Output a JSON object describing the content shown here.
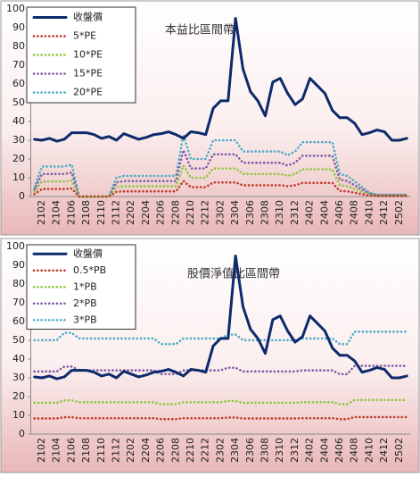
{
  "chart_data": [
    {
      "type": "line",
      "annotation": "本益比區間帶",
      "legend": "upper left",
      "ylim": [
        0,
        100
      ],
      "yticks": [
        0,
        10,
        20,
        30,
        40,
        50,
        60,
        70,
        80,
        90,
        100
      ],
      "categories": [
        null,
        "2102",
        null,
        "2104",
        null,
        "2106",
        null,
        "2108",
        null,
        "2110",
        null,
        "2112",
        null,
        "2202",
        null,
        "2204",
        null,
        "2206",
        null,
        "2208",
        null,
        "2210",
        null,
        "2212",
        null,
        "2302",
        null,
        "2304",
        null,
        "2306",
        null,
        "2308",
        null,
        "2310",
        null,
        "2312",
        null,
        "2402",
        null,
        "2404",
        null,
        "2406",
        null,
        "2408",
        null,
        "2410",
        null,
        "2412",
        null,
        "2502",
        null
      ],
      "series": [
        {
          "name": "收盤價",
          "color": "#0d2a6b",
          "line_style": "solid",
          "values": [
            30.5,
            30,
            31,
            29.5,
            30.5,
            34,
            34,
            34,
            33,
            31,
            32,
            30,
            33.5,
            32,
            30.5,
            31.5,
            33,
            33.5,
            34.5,
            33,
            31,
            34.5,
            34,
            33,
            47,
            51,
            51,
            95,
            68,
            56,
            51,
            43,
            61,
            63,
            55,
            49,
            52,
            63,
            59,
            55,
            46,
            42,
            42,
            39,
            33,
            34,
            35.5,
            34.5,
            30,
            30,
            31
          ]
        },
        {
          "name": "5*PE",
          "color": "#c0392b",
          "line_style": "dotted",
          "values": [
            1.25,
            4,
            4,
            4,
            4,
            4.25,
            0,
            0,
            0,
            0,
            0,
            2.5,
            2.75,
            2.75,
            2.75,
            2.75,
            2.75,
            2.75,
            2.75,
            2.75,
            8.25,
            5,
            5,
            5,
            7.5,
            7.5,
            7.5,
            7.5,
            6,
            6,
            6,
            6,
            6,
            6,
            5.5,
            6,
            7.25,
            7.25,
            7.25,
            7.25,
            7.25,
            3,
            2.75,
            2,
            1.25,
            0.5,
            0.25,
            0.25,
            0.25,
            0.25,
            0.25
          ]
        },
        {
          "name": "10*PE",
          "color": "#8dc63f",
          "line_style": "dotted",
          "values": [
            2.5,
            8,
            8,
            8,
            8,
            8.5,
            0,
            0,
            0,
            0,
            0,
            5,
            5.5,
            5.5,
            5.5,
            5.5,
            5.5,
            5.5,
            5.5,
            5.5,
            16.5,
            10,
            10,
            10,
            15,
            15,
            15,
            15,
            12,
            12,
            12,
            12,
            12,
            12,
            11,
            12,
            14.5,
            14.5,
            14.5,
            14.5,
            14.5,
            6,
            5.5,
            4,
            2.5,
            1,
            0.5,
            0.5,
            0.5,
            0.5,
            0.5
          ]
        },
        {
          "name": "15*PE",
          "color": "#7d5ba6",
          "line_style": "dotted",
          "values": [
            3.75,
            12,
            12,
            12,
            12,
            12.75,
            0,
            0,
            0,
            0,
            0,
            7.5,
            8.25,
            8.25,
            8.25,
            8.25,
            8.25,
            8.25,
            8.25,
            8.25,
            24.75,
            15,
            15,
            15,
            22.5,
            22.5,
            22.5,
            22.5,
            18,
            18,
            18,
            18,
            18,
            18,
            16.5,
            18,
            21.75,
            21.75,
            21.75,
            21.75,
            21.75,
            9,
            8.25,
            6,
            3.75,
            1.5,
            0.75,
            0.75,
            0.75,
            0.75,
            0.75
          ]
        },
        {
          "name": "20*PE",
          "color": "#4bacc6",
          "line_style": "dotted",
          "values": [
            5,
            16,
            16,
            16,
            16,
            17,
            0,
            0,
            0,
            0,
            0,
            10,
            11,
            11,
            11,
            11,
            11,
            11,
            11,
            11,
            33,
            20,
            20,
            20,
            30,
            30,
            30,
            30,
            24,
            24,
            24,
            24,
            24,
            24,
            22,
            24,
            29,
            29,
            29,
            29,
            29,
            12,
            11,
            8,
            5,
            2,
            1,
            1,
            1,
            1,
            1
          ]
        }
      ]
    },
    {
      "type": "line",
      "annotation": "股價淨值比區間帶",
      "legend": "upper left",
      "ylim": [
        0,
        100
      ],
      "yticks": [
        0,
        10,
        20,
        30,
        40,
        50,
        60,
        70,
        80,
        90,
        100
      ],
      "categories": [
        null,
        "2102",
        null,
        "2104",
        null,
        "2106",
        null,
        "2108",
        null,
        "2110",
        null,
        "2112",
        null,
        "2202",
        null,
        "2204",
        null,
        "2206",
        null,
        "2208",
        null,
        "2210",
        null,
        "2212",
        null,
        "2302",
        null,
        "2304",
        null,
        "2306",
        null,
        "2308",
        null,
        "2310",
        null,
        "2312",
        null,
        "2402",
        null,
        "2404",
        null,
        "2406",
        null,
        "2408",
        null,
        "2410",
        null,
        "2412",
        null,
        "2502",
        null
      ],
      "series": [
        {
          "name": "收盤價",
          "color": "#0d2a6b",
          "line_style": "solid",
          "values": [
            30.5,
            30,
            31,
            29.5,
            30.5,
            34,
            34,
            34,
            33,
            31,
            32,
            30,
            33.5,
            32,
            30.5,
            31.5,
            33,
            33.5,
            34.5,
            33,
            31,
            34.5,
            34,
            33,
            47,
            51,
            51,
            95,
            68,
            56,
            51,
            43,
            61,
            63,
            55,
            49,
            52,
            63,
            59,
            55,
            46,
            42,
            42,
            39,
            33,
            34,
            35.5,
            34.5,
            30,
            30,
            31
          ]
        },
        {
          "name": "0.5*PB",
          "color": "#c0392b",
          "line_style": "dotted",
          "values": [
            8.35,
            8.35,
            8.35,
            8.35,
            9,
            9,
            8.5,
            8.5,
            8.5,
            8.5,
            8.5,
            8.5,
            8.5,
            8.5,
            8.5,
            8.5,
            8.5,
            8,
            8,
            8,
            8.5,
            8.5,
            8.5,
            8.5,
            8.5,
            8.5,
            8.85,
            8.85,
            8.35,
            8.35,
            8.35,
            8.35,
            8.35,
            8.35,
            8.35,
            8.35,
            8.5,
            8.5,
            8.5,
            8.5,
            8.5,
            8,
            8,
            9.1,
            9.1,
            9.1,
            9.1,
            9.1,
            9.1,
            9.1,
            9.1
          ]
        },
        {
          "name": "1*PB",
          "color": "#8dc63f",
          "line_style": "dotted",
          "values": [
            16.7,
            16.7,
            16.7,
            16.7,
            18,
            18,
            17,
            17,
            17,
            17,
            17,
            17,
            17,
            17,
            17,
            17,
            17,
            16,
            16,
            16,
            17,
            17,
            17,
            17,
            17,
            17,
            17.7,
            17.7,
            16.7,
            16.7,
            16.7,
            16.7,
            16.7,
            16.7,
            16.7,
            16.7,
            17,
            17,
            17,
            17,
            17,
            16,
            16,
            18.2,
            18.2,
            18.2,
            18.2,
            18.2,
            18.2,
            18.2,
            18.2
          ]
        },
        {
          "name": "2*PB",
          "color": "#7d5ba6",
          "line_style": "dotted",
          "values": [
            33.4,
            33.4,
            33.4,
            33.4,
            36,
            36,
            34,
            34,
            34,
            34,
            34,
            34,
            34,
            34,
            34,
            34,
            34,
            32,
            32,
            32,
            34,
            34,
            34,
            34,
            34,
            34,
            35.4,
            35.4,
            33.4,
            33.4,
            33.4,
            33.4,
            33.4,
            33.4,
            33.4,
            33.4,
            34,
            34,
            34,
            34,
            34,
            32,
            32,
            36.4,
            36.4,
            36.4,
            36.4,
            36.4,
            36.4,
            36.4,
            36.4
          ]
        },
        {
          "name": "3*PB",
          "color": "#4bacc6",
          "line_style": "dotted",
          "values": [
            50.1,
            50.1,
            50.1,
            50.1,
            54,
            54,
            51,
            51,
            51,
            51,
            51,
            51,
            51,
            51,
            51,
            51,
            51,
            48,
            48,
            48,
            51,
            51,
            51,
            51,
            51,
            51,
            53.1,
            53.1,
            50.1,
            50.1,
            50.1,
            50.1,
            50.1,
            50.1,
            50.1,
            50.1,
            51,
            51,
            51,
            51,
            51,
            48,
            48,
            54.6,
            54.6,
            54.6,
            54.6,
            54.6,
            54.6,
            54.6,
            54.6
          ]
        }
      ]
    }
  ]
}
